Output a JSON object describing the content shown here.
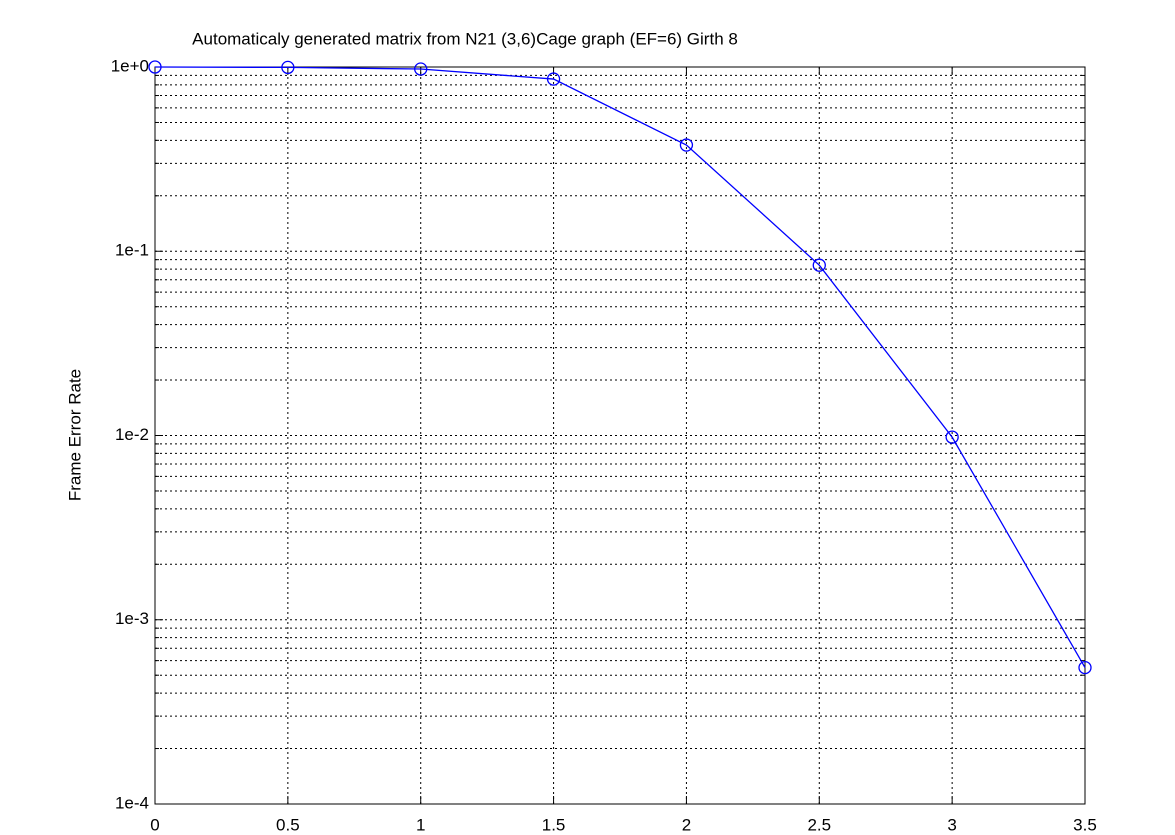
{
  "chart_data": {
    "type": "line",
    "title": "Automaticaly generated matrix from N21 (3,6)Cage graph (EF=6) Girth 8",
    "y_label": "Frame Error Rate",
    "x": [
      0,
      0.5,
      1,
      1.5,
      2,
      2.5,
      3,
      3.5
    ],
    "series": [
      {
        "color": "#0000ff",
        "values": [
          1.0,
          0.995,
          0.975,
          0.86,
          0.377,
          0.084,
          0.0098,
          0.00055
        ]
      }
    ],
    "xlim": [
      0,
      3.5
    ],
    "xticks": [
      0,
      0.5,
      1,
      1.5,
      2,
      2.5,
      3,
      3.5
    ],
    "ylim": [
      0.0001,
      1
    ],
    "yscale": "log",
    "yticks": [
      {
        "value": 0.0001,
        "label": "1e-4"
      },
      {
        "value": 0.001,
        "label": "1e-3"
      },
      {
        "value": 0.01,
        "label": "1e-2"
      },
      {
        "value": 0.1,
        "label": "1e-1"
      },
      {
        "value": 1,
        "label": "1e+0"
      }
    ],
    "yminorticks": [
      0.0002,
      0.0003,
      0.0004,
      0.0005,
      0.0006,
      0.0007,
      0.0008,
      0.0009,
      0.002,
      0.003,
      0.004,
      0.005,
      0.006,
      0.007,
      0.008,
      0.009,
      0.02,
      0.03,
      0.04,
      0.05,
      0.06,
      0.07,
      0.08,
      0.09,
      0.2,
      0.3,
      0.4,
      0.5,
      0.6,
      0.7,
      0.8,
      0.9
    ],
    "grid": true
  }
}
